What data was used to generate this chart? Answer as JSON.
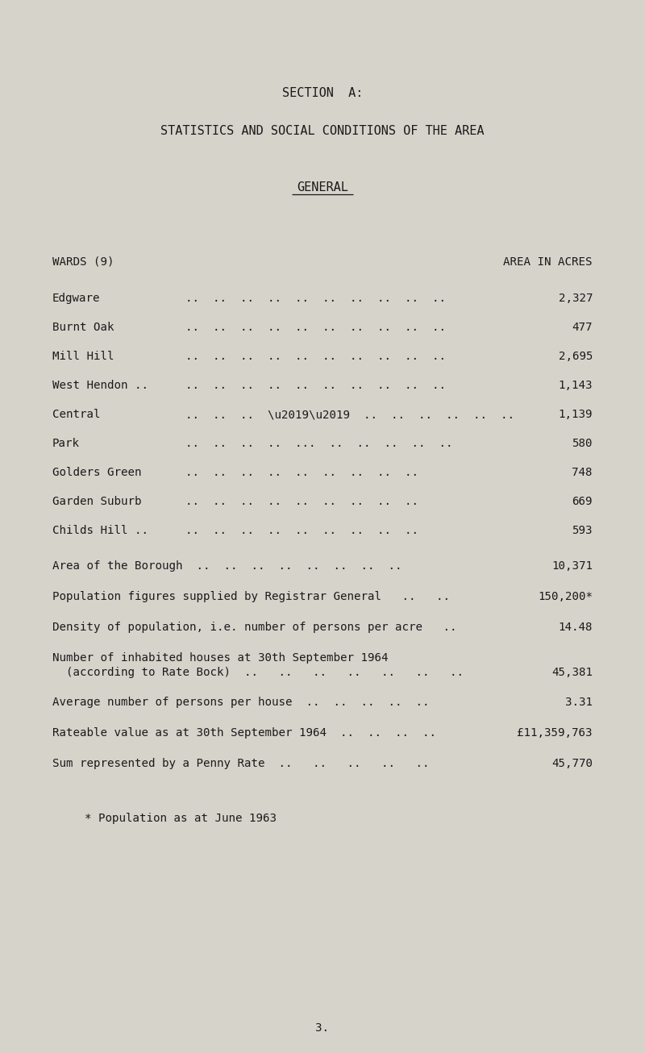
{
  "bg_color": "#d6d3cb",
  "text_color": "#1a1a1a",
  "title1": "SECTION  A:",
  "title2": "STATISTICS AND SOCIAL CONDITIONS OF THE AREA",
  "subtitle": "GENERAL",
  "col_left": "WARDS (9)",
  "col_right": "AREA IN ACRES",
  "wards": [
    {
      "name": "Edgware",
      "dots": "..  ..  ..  ..  ..  ..  ..  ..  ..  ..",
      "val": "2,327"
    },
    {
      "name": "Burnt Oak",
      "dots": "..  ..  ..  ..  ..  ..  ..  ..  ..  ..",
      "val": "477"
    },
    {
      "name": "Mill Hill",
      "dots": "..  ..  ..  ..  ..  ..  ..  ..  ..  ..",
      "val": "2,695"
    },
    {
      "name": "West Hendon ..",
      "dots": "..  ..  ..  ..  ..  ..  ..  ..  ..  ..",
      "val": "1,143"
    },
    {
      "name": "Central",
      "dots": "..  ..  ..  \\u2019\\u2019  ..  ..  ..  ..  ..  ..",
      "val": "1,139"
    },
    {
      "name": "Park",
      "dots": "..  ..  ..  ..  ...  ..  ..  ..  ..  ..",
      "val": "580"
    },
    {
      "name": "Golders Green",
      "dots": "..  ..  ..  ..  ..  ..  ..  ..  ..",
      "val": "748"
    },
    {
      "name": "Garden Suburb",
      "dots": "..  ..  ..  ..  ..  ..  ..  ..  ..",
      "val": "669"
    },
    {
      "name": "Childs Hill ..",
      "dots": "..  ..  ..  ..  ..  ..  ..  ..  ..",
      "val": "593"
    }
  ],
  "summary_rows": [
    {
      "label": "Area of the Borough  ..  ..  ..  ..  ..  ..  ..  ..",
      "val": "10,371",
      "indent": false,
      "two_line": false
    },
    {
      "label": "Population figures supplied by Registrar General   ..   .. ",
      "val": "150,200*",
      "indent": false,
      "two_line": false
    },
    {
      "label": "Density of population, i.e. number of persons per acre   ..",
      "val": "14.48",
      "indent": false,
      "two_line": false
    },
    {
      "label": "Number of inhabited houses at 30th September 1964",
      "label2": "  (according to Rate Bock)  ..   ..   ..   ..   ..   ..   ..",
      "val": "45,381",
      "indent": false,
      "two_line": true
    },
    {
      "label": "Average number of persons per house  ..  ..  ..  ..  ..",
      "val": "3.31",
      "indent": false,
      "two_line": false
    },
    {
      "label": "Rateable value as at 30th September 1964  ..  ..  ..  ..",
      "val": "£11,359,763",
      "indent": false,
      "two_line": false
    },
    {
      "label": "Sum represented by a Penny Rate  ..   ..   ..   ..   ..",
      "val": "45,770",
      "indent": false,
      "two_line": false
    }
  ],
  "footnote": "* Population as at June 1963",
  "page_number": "3.",
  "font_size_pt": 10.2,
  "title_font_size_pt": 11.0
}
